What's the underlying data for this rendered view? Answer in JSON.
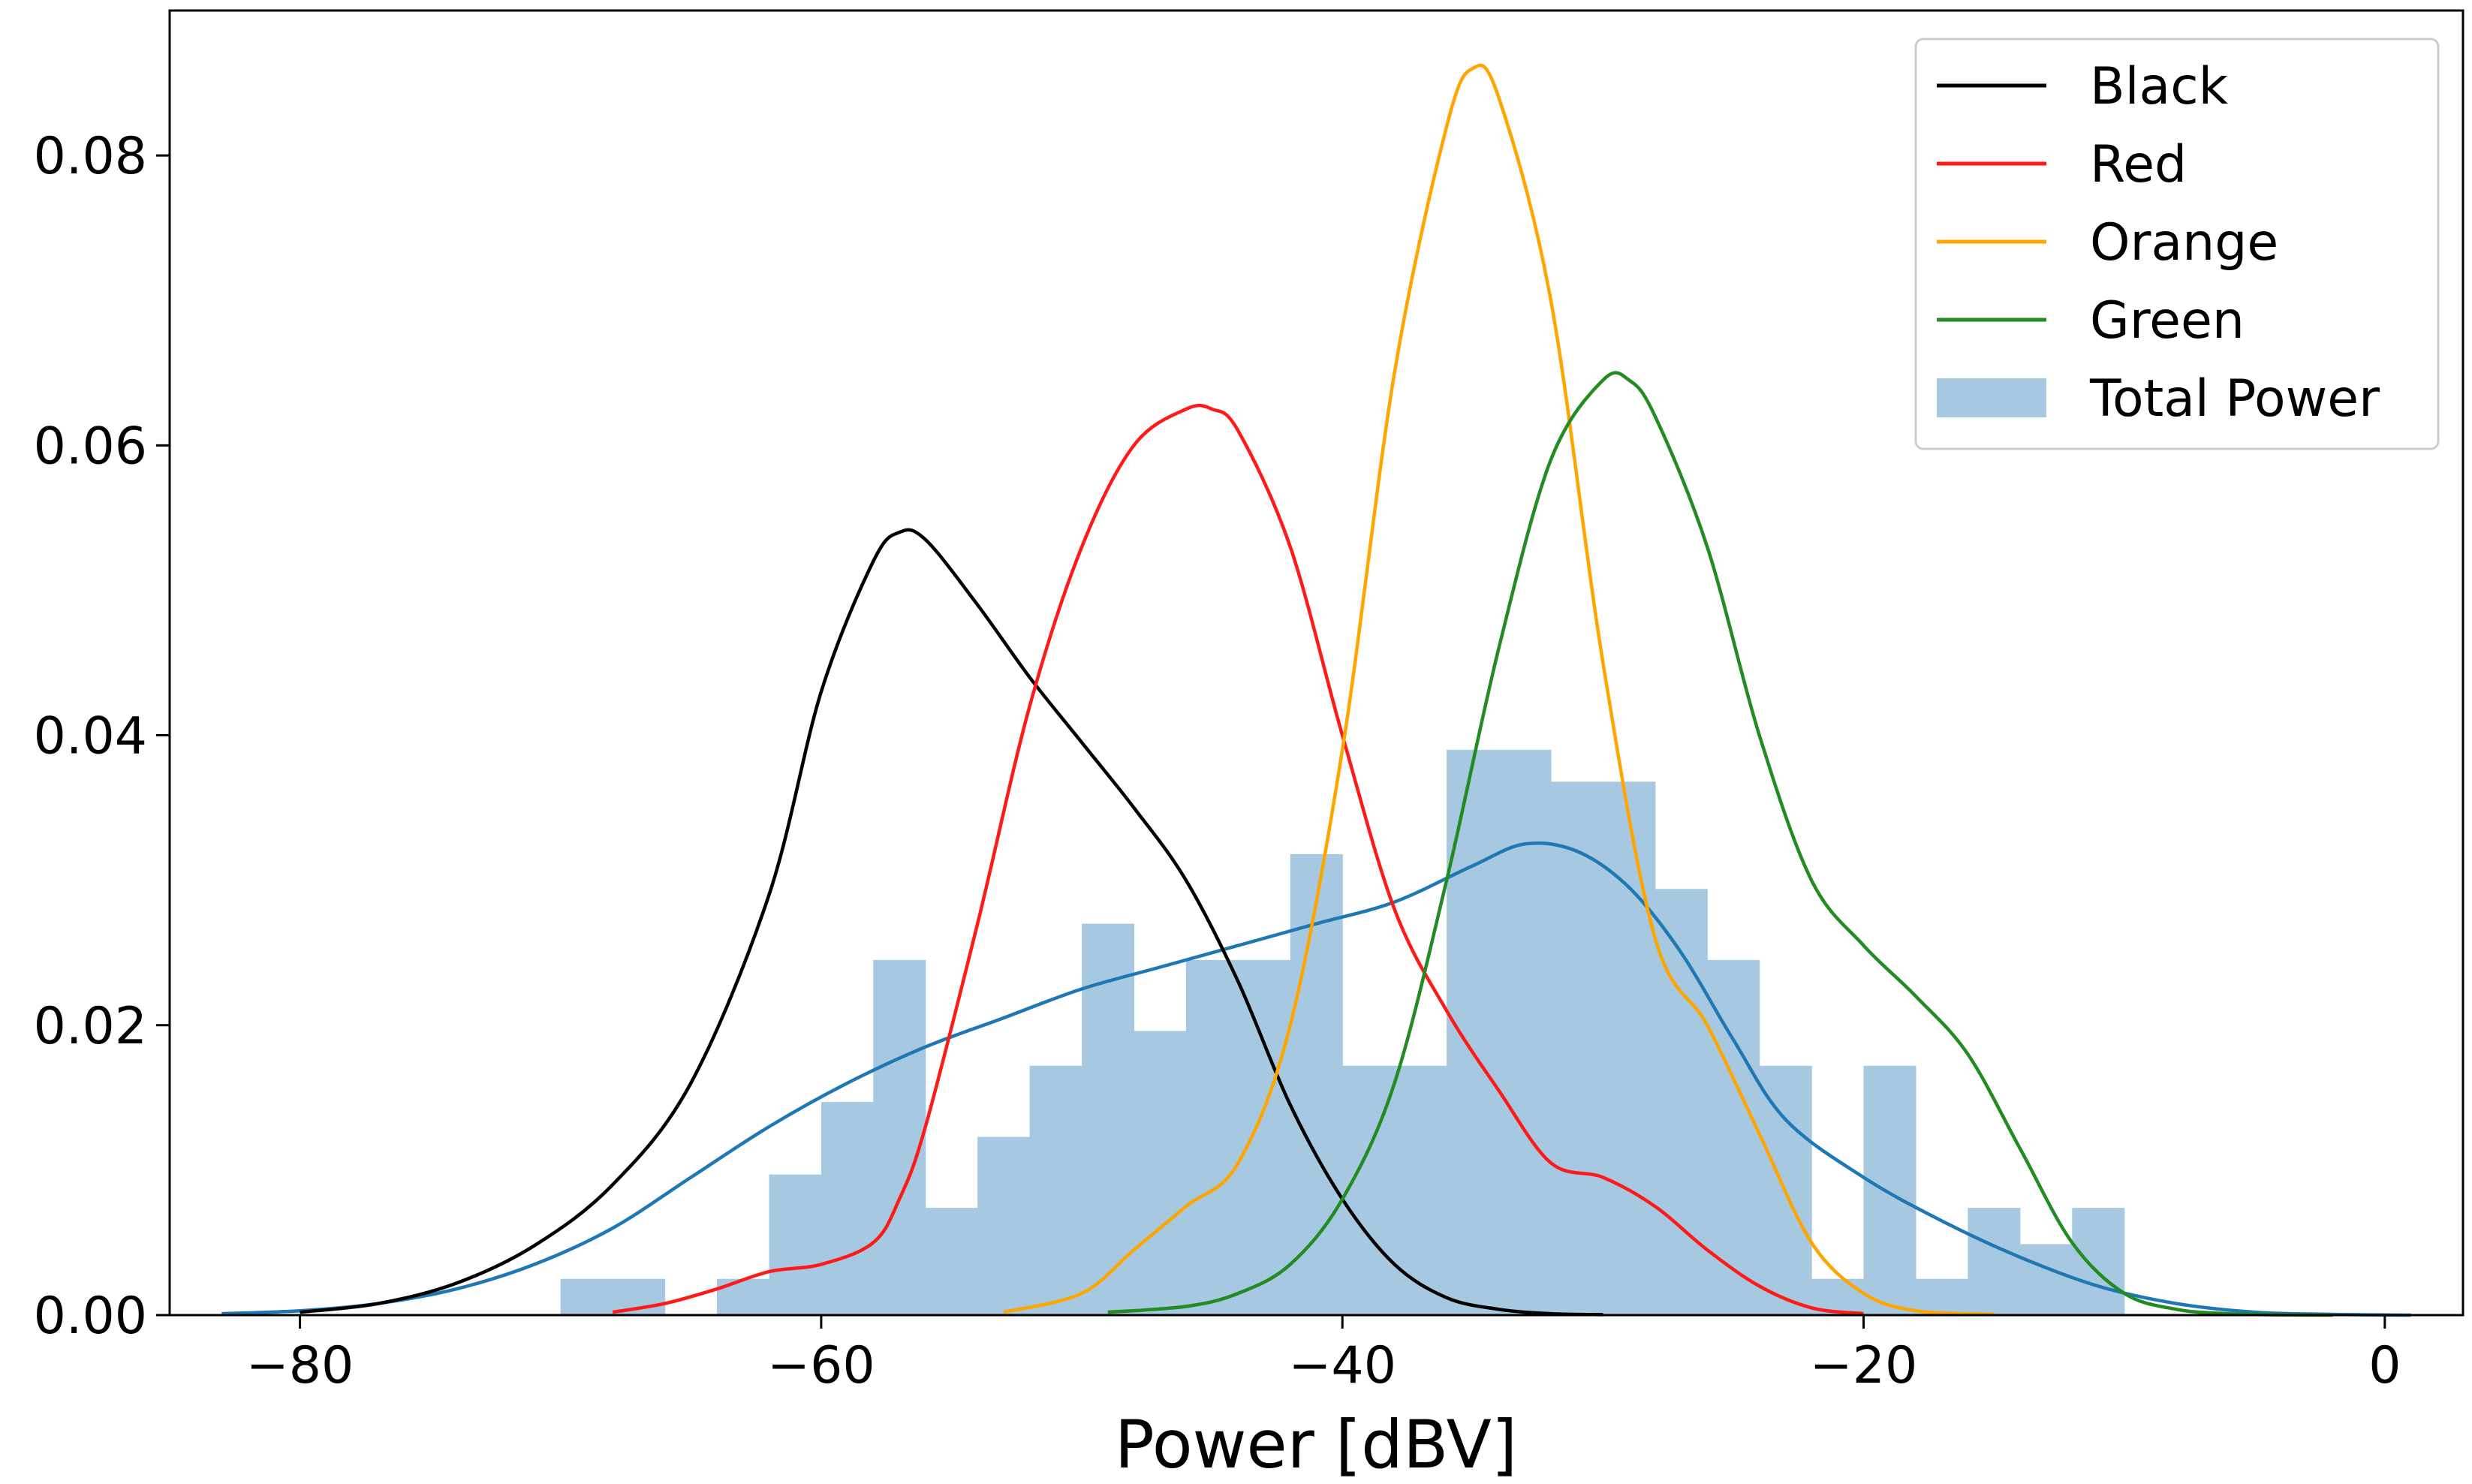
{
  "chart_data": {
    "type": "histogram+kde",
    "title": "",
    "xlabel": "Power [dBV]",
    "ylabel": "",
    "xlim": [
      -85,
      3
    ],
    "ylim": [
      0,
      0.09
    ],
    "x_ticks": [
      -80,
      -60,
      -40,
      -20,
      0
    ],
    "x_tick_labels": [
      "−80",
      "−60",
      "−40",
      "−20",
      "0"
    ],
    "y_ticks": [
      0,
      0.02,
      0.04,
      0.06,
      0.08
    ],
    "y_tick_labels": [
      "0.00",
      "0.02",
      "0.04",
      "0.06",
      "0.08"
    ],
    "legend_position": "top-right",
    "histogram": {
      "name": "Total Power",
      "color": "#a6c8e0",
      "bin_edges": [
        -70,
        -68,
        -66,
        -64,
        -62,
        -60,
        -58,
        -56,
        -54,
        -52,
        -50,
        -48,
        -46,
        -44,
        -42,
        -40,
        -38,
        -36,
        -34,
        -32,
        -30,
        -28,
        -26,
        -24,
        -22,
        -20,
        -18,
        -16,
        -14,
        -12
      ],
      "values": [
        0.0025,
        0.0025,
        0,
        0.0025,
        0.0097,
        0.0147,
        0.0245,
        0.0074,
        0.0123,
        0.0172,
        0.027,
        0.0196,
        0.0245,
        0.0245,
        0.0318,
        0.0172,
        0.0172,
        0.039,
        0.039,
        0.0368,
        0.0368,
        0.0294,
        0.0245,
        0.0172,
        0.0025,
        0.0172,
        0.0025,
        0.0074,
        0.0049,
        0.0074
      ]
    },
    "series": [
      {
        "name": "Black",
        "color": "#000000",
        "x": [
          -80,
          -77,
          -74,
          -71,
          -68,
          -65,
          -62,
          -60,
          -58,
          -57,
          -56,
          -54,
          -52,
          -50,
          -48,
          -46,
          -44,
          -42,
          -40,
          -38,
          -36,
          -34,
          -32,
          -30
        ],
        "values": [
          0.0002,
          0.0008,
          0.0022,
          0.0048,
          0.009,
          0.016,
          0.029,
          0.043,
          0.052,
          0.054,
          0.0535,
          0.049,
          0.044,
          0.0395,
          0.035,
          0.03,
          0.023,
          0.0145,
          0.008,
          0.0035,
          0.0012,
          0.0004,
          0.0001,
          3e-05
        ]
      },
      {
        "name": "Red",
        "color": "#ff1a1a",
        "x": [
          -68,
          -66,
          -64,
          -62,
          -60,
          -58,
          -57,
          -56,
          -54,
          -52,
          -50,
          -48,
          -46,
          -45,
          -44,
          -42,
          -40,
          -38,
          -36,
          -34,
          -32,
          -30,
          -28,
          -26,
          -24,
          -22,
          -20
        ],
        "values": [
          0.0002,
          0.0008,
          0.0018,
          0.003,
          0.0035,
          0.005,
          0.008,
          0.013,
          0.027,
          0.042,
          0.053,
          0.06,
          0.0625,
          0.0625,
          0.061,
          0.053,
          0.04,
          0.028,
          0.021,
          0.0155,
          0.0105,
          0.0095,
          0.0075,
          0.0045,
          0.002,
          0.0005,
          0.0001
        ]
      },
      {
        "name": "Orange",
        "color": "#ffa500",
        "x": [
          -53,
          -50,
          -48,
          -46,
          -44,
          -42,
          -40,
          -38,
          -36,
          -35,
          -34,
          -32,
          -30,
          -28,
          -26,
          -24,
          -22,
          -20,
          -18,
          -15
        ],
        "values": [
          0.0002,
          0.0015,
          0.0045,
          0.0075,
          0.0105,
          0.02,
          0.039,
          0.065,
          0.082,
          0.086,
          0.084,
          0.07,
          0.045,
          0.026,
          0.02,
          0.0125,
          0.005,
          0.0015,
          0.0003,
          5e-05
        ]
      },
      {
        "name": "Green",
        "color": "#228b22",
        "x": [
          -49,
          -46,
          -44,
          -42,
          -40,
          -38,
          -36,
          -34,
          -32,
          -30,
          -29,
          -28,
          -26,
          -24,
          -22,
          -20,
          -18,
          -16,
          -14,
          -12,
          -10,
          -8,
          -6,
          -4,
          -2
        ],
        "values": [
          0.0002,
          0.0006,
          0.0015,
          0.0035,
          0.008,
          0.016,
          0.03,
          0.046,
          0.059,
          0.0645,
          0.0645,
          0.062,
          0.053,
          0.04,
          0.03,
          0.0255,
          0.022,
          0.018,
          0.0115,
          0.005,
          0.0015,
          0.0004,
          0.0001,
          2e-05,
          0
        ]
      },
      {
        "name": "Total Power KDE",
        "legend": false,
        "color": "#1f77b4",
        "x": [
          -83,
          -80,
          -77,
          -74,
          -71,
          -68,
          -65,
          -62,
          -59,
          -56,
          -53,
          -50,
          -47,
          -44,
          -41,
          -38,
          -35,
          -33,
          -31,
          -29,
          -27,
          -25,
          -23,
          -20,
          -17,
          -14,
          -11,
          -8,
          -5,
          -2,
          1
        ],
        "values": [
          0.0001,
          0.0003,
          0.0008,
          0.0018,
          0.0035,
          0.006,
          0.0095,
          0.013,
          0.016,
          0.0185,
          0.0205,
          0.0225,
          0.024,
          0.0255,
          0.027,
          0.0285,
          0.031,
          0.0325,
          0.032,
          0.0295,
          0.025,
          0.019,
          0.0135,
          0.0095,
          0.0065,
          0.004,
          0.002,
          0.0008,
          0.0002,
          5e-05,
          0
        ]
      }
    ],
    "legend_entries": [
      {
        "label": "Black",
        "kind": "line",
        "color": "#000000"
      },
      {
        "label": "Red",
        "kind": "line",
        "color": "#ff1a1a"
      },
      {
        "label": "Orange",
        "kind": "line",
        "color": "#ffa500"
      },
      {
        "label": "Green",
        "kind": "line",
        "color": "#228b22"
      },
      {
        "label": "Total Power",
        "kind": "patch",
        "color": "#a6c8e0"
      }
    ]
  }
}
